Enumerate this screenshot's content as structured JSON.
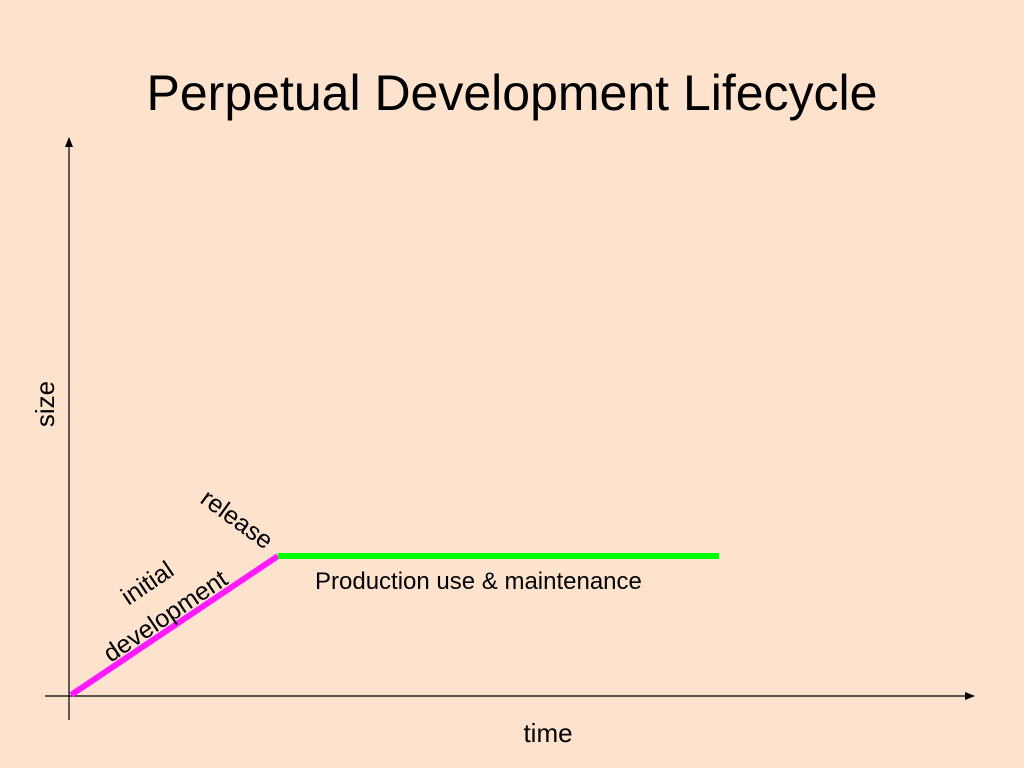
{
  "slide": {
    "title": "Perpetual Development Lifecycle"
  },
  "axes": {
    "x_label": "time",
    "y_label": "size"
  },
  "phases": {
    "initial_line1": "initial",
    "initial_line2": "development",
    "release": "release",
    "production": "Production use & maintenance"
  },
  "colors": {
    "background": "#fde3cd",
    "initial_development": "#ff1aff",
    "production": "#00ff00",
    "axis": "#000000"
  }
}
